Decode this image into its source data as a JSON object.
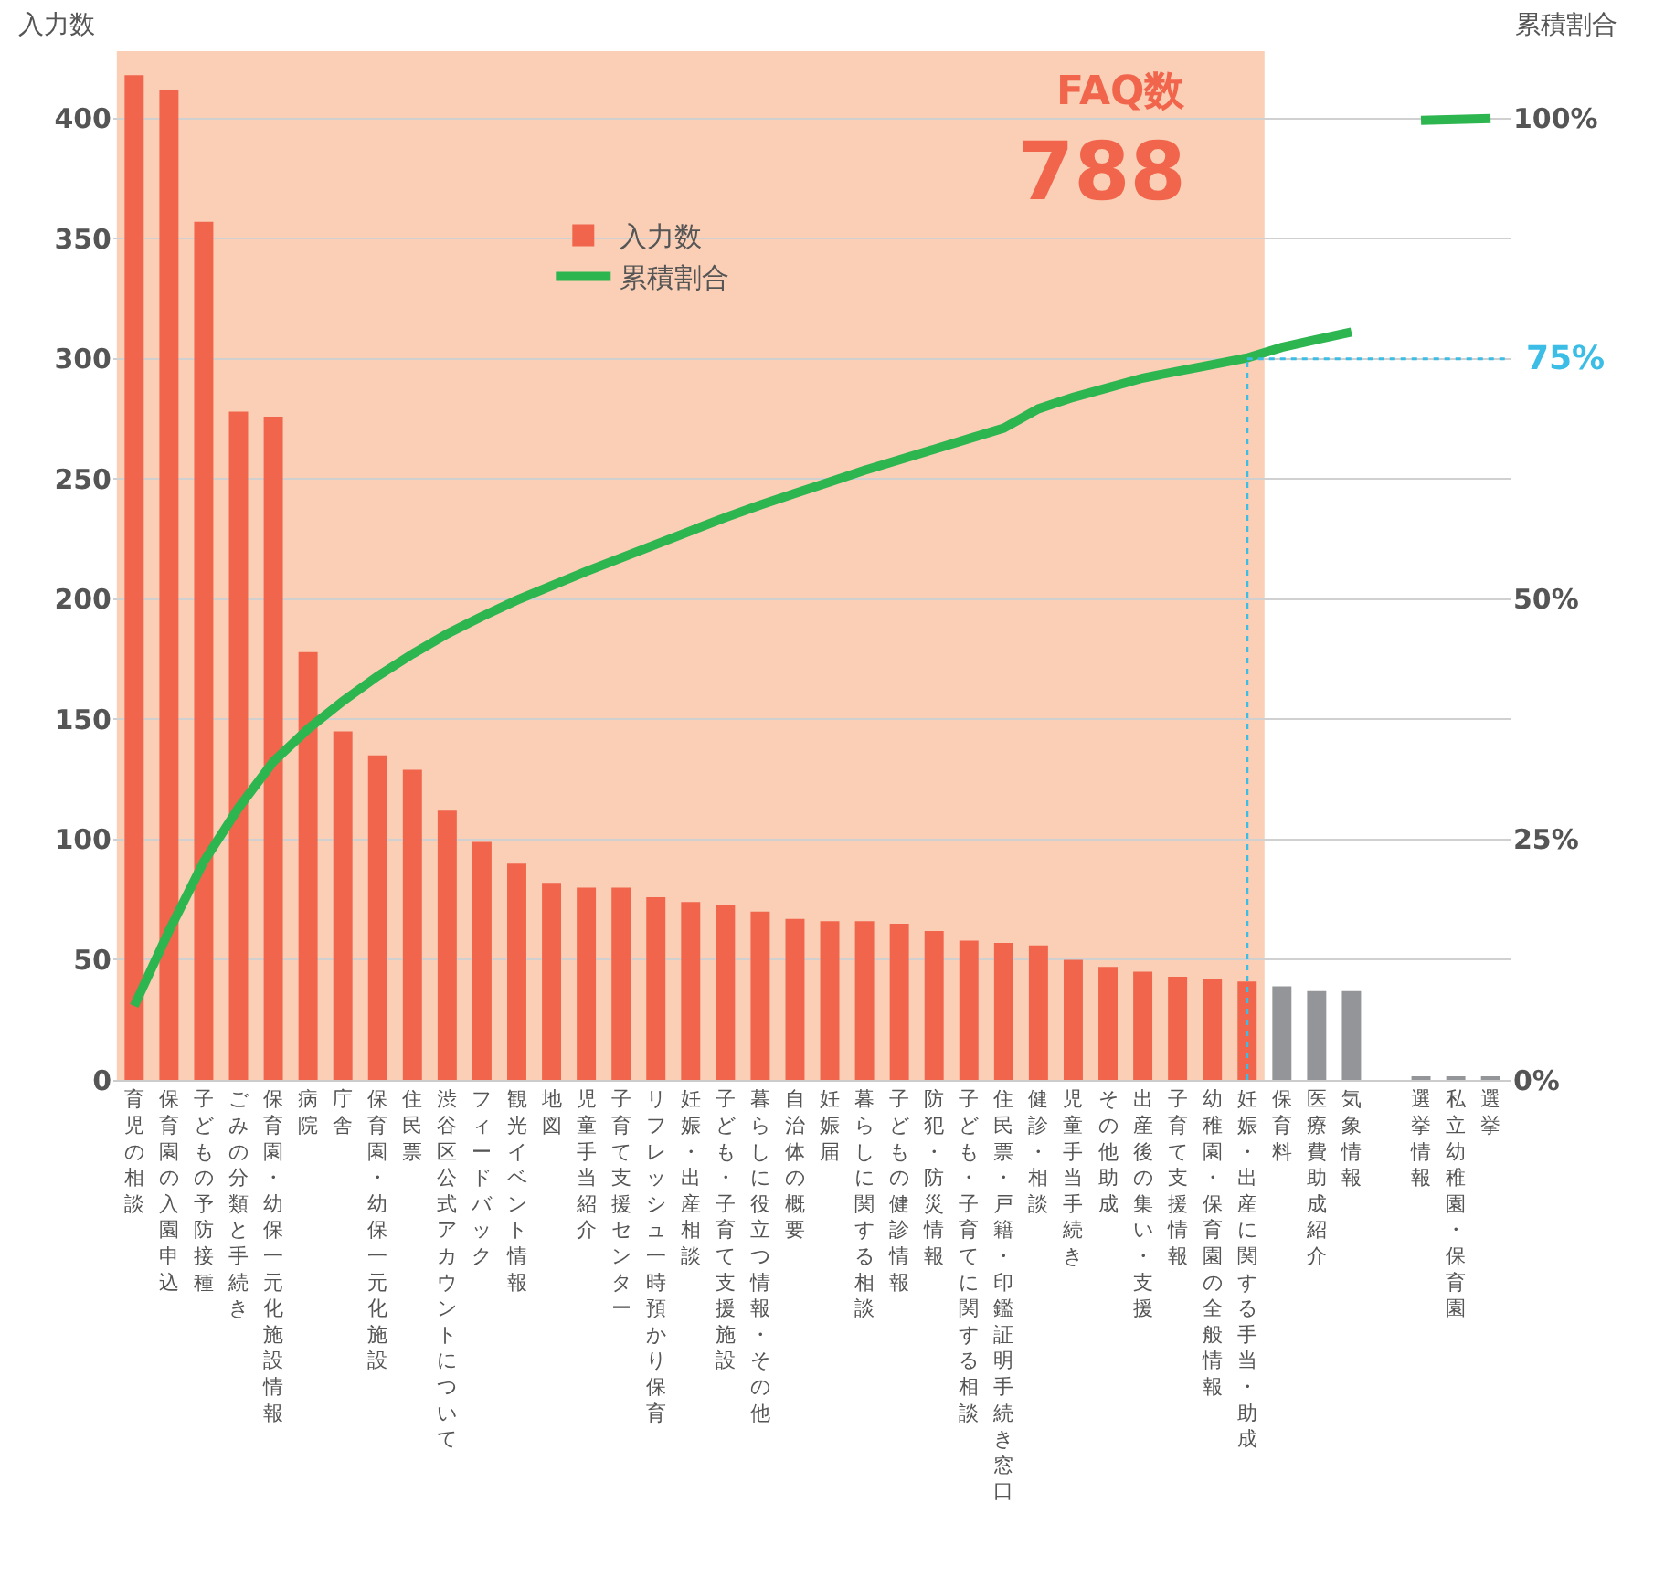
{
  "chart_data": {
    "type": "bar",
    "ylabel": "入力数",
    "y2label": "累積割合",
    "categories": [
      "育児の相談",
      "保育園の入園申込",
      "子どもの予防接種",
      "ごみの分類と手続き",
      "保育園・幼保一元化施設情報",
      "病院",
      "庁舎",
      "保育園・幼保一元化施設",
      "住民票",
      "渋谷区公式アカウントについて",
      "フィードバック",
      "観光イベント情報",
      "地図",
      "児童手当紹介",
      "子育て支援センター",
      "リフレッシュ一時預かり保育",
      "妊娠・出産相談",
      "子ども・子育て支援施設",
      "暮らしに役立つ情報・その他",
      "自治体の概要",
      "妊娠届",
      "暮らしに関する相談",
      "子どもの健診情報",
      "防犯・防災情報",
      "子ども・子育てに関する相談",
      "住民票・戸籍・印鑑証明手続き窓口",
      "健診・相談",
      "児童手当手続き",
      "その他助成",
      "出産後の集い・支援",
      "子育て支援情報",
      "幼稚園・保育園の全般情報",
      "妊娠・出産に関する手当・助成",
      "保育料",
      "医療費助成紹介",
      "気象情報",
      null,
      "選挙情報",
      "私立幼稚園・保育園",
      "選挙"
    ],
    "series": [
      {
        "name": "入力数",
        "colors": [
          "#f0654c",
          "#f0654c",
          "#f0654c",
          "#f0654c",
          "#f0654c",
          "#f0654c",
          "#f0654c",
          "#f0654c",
          "#f0654c",
          "#f0654c",
          "#f0654c",
          "#f0654c",
          "#f0654c",
          "#f0654c",
          "#f0654c",
          "#f0654c",
          "#f0654c",
          "#f0654c",
          "#f0654c",
          "#f0654c",
          "#f0654c",
          "#f0654c",
          "#f0654c",
          "#f0654c",
          "#f0654c",
          "#f0654c",
          "#f0654c",
          "#f0654c",
          "#f0654c",
          "#f0654c",
          "#f0654c",
          "#f0654c",
          "#f0654c",
          "#939598",
          "#939598",
          "#939598",
          "#939598",
          "#939598",
          "#939598",
          "#939598"
        ],
        "values": [
          418,
          412,
          357,
          278,
          276,
          178,
          145,
          135,
          129,
          112,
          99,
          90,
          82,
          80,
          80,
          76,
          74,
          73,
          70,
          67,
          66,
          66,
          65,
          62,
          58,
          57,
          56,
          50,
          47,
          45,
          43,
          42,
          41,
          39,
          37,
          37,
          null,
          1,
          1,
          1
        ]
      },
      {
        "name": "累積割合",
        "type": "line",
        "axis": "y2",
        "color": "#2db550",
        "values": [
          7.7,
          15.5,
          22.7,
          28.3,
          33.1,
          36.5,
          39.4,
          42,
          44.3,
          46.4,
          48.2,
          49.9,
          51.4,
          52.9,
          54.3,
          55.7,
          57.1,
          58.5,
          59.8,
          61,
          62.2,
          63.4,
          64.5,
          65.6,
          66.7,
          67.8,
          69.8,
          71,
          72,
          73,
          73.7,
          74.4,
          75.1,
          76.2,
          77,
          77.8,
          null,
          99.8,
          99.9,
          100
        ]
      }
    ],
    "ylim": [
      0,
      428
    ],
    "yticks": [
      0,
      50,
      100,
      150,
      200,
      250,
      300,
      350,
      400
    ],
    "y2lim": [
      0,
      107
    ],
    "y2ticks": [
      {
        "value": 0,
        "label": "0%"
      },
      {
        "value": 25,
        "label": "25%"
      },
      {
        "value": 50,
        "label": "50%"
      },
      {
        "value": 100,
        "label": "100%"
      }
    ],
    "bands": [
      {
        "axis": "x",
        "from": "育児の相談",
        "to": "妊娠・出産に関する手当・助成",
        "color": "#facfb6"
      }
    ],
    "ref_lines": [
      {
        "axis": "y2",
        "value": 75,
        "label": "75%",
        "color": "#3bbde6",
        "line_style": "dotted"
      },
      {
        "axis": "x",
        "value": "妊娠・出産に関する手当・助成",
        "color": "#3bbde6",
        "line_style": "dotted"
      }
    ],
    "annotations": [
      "FAQ数",
      "788"
    ],
    "grid": "y",
    "legend": "top",
    "marker": "none"
  }
}
